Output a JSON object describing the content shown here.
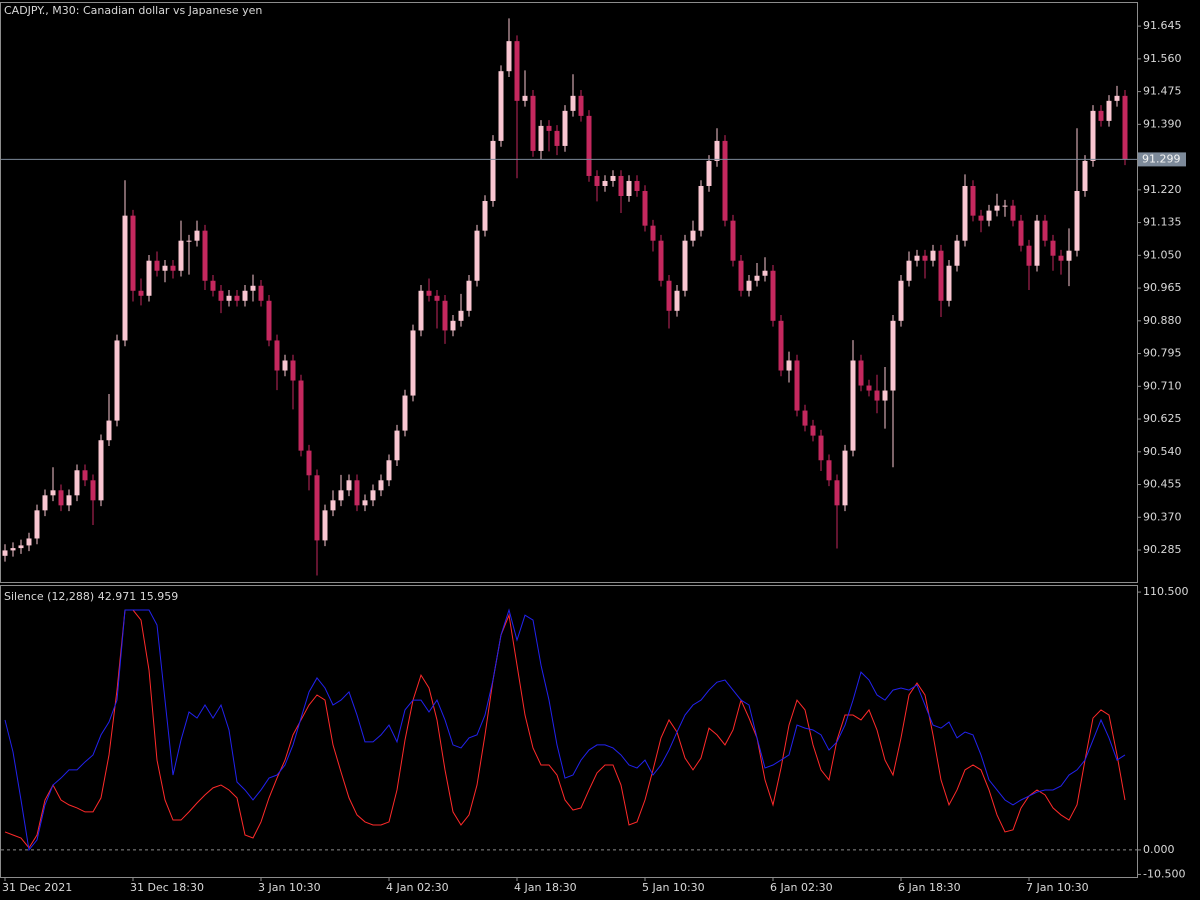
{
  "chart_data": [
    {
      "type": "candlestick",
      "title": "CADJPY., M30:  Canadian dollar vs Japanese yen",
      "bull_color": "#f9c6d1",
      "bear_color": "#c4285e",
      "categories": [
        "31 Dec 2021",
        null,
        null,
        null,
        null,
        null,
        null,
        null,
        null,
        null,
        null,
        null,
        null,
        null,
        null,
        null,
        "31 Dec 18:30",
        null,
        null,
        null,
        null,
        null,
        null,
        null,
        null,
        null,
        null,
        null,
        null,
        null,
        null,
        null,
        "3 Jan 10:30",
        null,
        null,
        null,
        null,
        null,
        null,
        null,
        null,
        null,
        null,
        null,
        null,
        null,
        null,
        null,
        "4 Jan 02:30",
        null,
        null,
        null,
        null,
        null,
        null,
        null,
        null,
        null,
        null,
        null,
        null,
        null,
        null,
        null,
        "4 Jan 18:30",
        null,
        null,
        null,
        null,
        null,
        null,
        null,
        null,
        null,
        null,
        null,
        null,
        null,
        null,
        null,
        "5 Jan 10:30",
        null,
        null,
        null,
        null,
        null,
        null,
        null,
        null,
        null,
        null,
        null,
        null,
        null,
        null,
        null,
        "6 Jan 02:30",
        null,
        null,
        null,
        null,
        null,
        null,
        null,
        null,
        null,
        null,
        null,
        null,
        null,
        null,
        null,
        "6 Jan 18:30",
        null,
        null,
        null,
        null,
        null,
        null,
        null,
        null,
        null,
        null,
        null,
        null,
        null,
        null,
        null,
        "7 Jan 10:30",
        null,
        null,
        null,
        null,
        null,
        null,
        null,
        null,
        null,
        null,
        null,
        null
      ],
      "open": [
        90.27,
        90.284,
        90.29,
        90.297,
        90.315,
        90.388,
        90.427,
        90.44,
        90.401,
        90.427,
        90.492,
        90.466,
        90.414,
        90.57,
        90.621,
        90.829,
        91.153,
        90.958,
        90.945,
        91.036,
        91.01,
        91.023,
        91.01,
        91.088,
        91.088,
        91.114,
        90.984,
        90.958,
        90.932,
        90.945,
        90.932,
        90.958,
        90.971,
        90.932,
        90.829,
        90.751,
        90.777,
        90.725,
        90.543,
        90.479,
        90.31,
        90.388,
        90.414,
        90.44,
        90.466,
        90.401,
        90.414,
        90.44,
        90.466,
        90.518,
        90.595,
        90.686,
        90.855,
        90.958,
        90.945,
        90.932,
        90.855,
        90.88,
        90.906,
        90.984,
        91.114,
        91.191,
        91.347,
        91.528,
        91.606,
        91.451,
        91.464,
        91.321,
        91.386,
        91.373,
        91.334,
        91.425,
        91.464,
        91.412,
        91.256,
        91.23,
        91.243,
        91.256,
        91.204,
        91.243,
        91.217,
        91.127,
        91.088,
        90.984,
        90.906,
        90.958,
        91.088,
        91.114,
        91.23,
        91.295,
        91.347,
        91.14,
        91.036,
        90.958,
        90.984,
        90.997,
        91.01,
        90.88,
        90.751,
        90.777,
        90.647,
        90.608,
        90.582,
        90.518,
        90.466,
        90.401,
        90.543,
        90.777,
        90.712,
        90.699,
        90.673,
        90.699,
        90.88,
        90.984,
        91.036,
        91.049,
        91.036,
        91.062,
        90.932,
        91.023,
        91.088,
        91.23,
        91.153,
        91.14,
        91.166,
        91.179,
        91.179,
        91.14,
        91.075,
        91.023,
        91.14,
        91.088,
        91.049,
        91.036,
        91.062,
        91.217,
        91.295,
        91.425,
        91.399,
        91.451,
        91.464
      ],
      "high": [
        90.3,
        90.305,
        90.312,
        90.33,
        90.403,
        90.442,
        90.5,
        90.455,
        90.442,
        90.507,
        90.507,
        90.481,
        90.585,
        90.69,
        90.844,
        91.245,
        91.168,
        90.99,
        91.051,
        91.06,
        91.038,
        91.038,
        91.14,
        91.103,
        91.14,
        91.129,
        90.999,
        90.973,
        90.96,
        90.96,
        90.973,
        91.0,
        90.986,
        90.947,
        90.844,
        90.792,
        90.792,
        90.74,
        90.558,
        90.494,
        90.403,
        90.44,
        90.48,
        90.481,
        90.481,
        90.429,
        90.455,
        90.481,
        90.533,
        90.61,
        90.701,
        90.87,
        90.973,
        90.99,
        90.96,
        90.947,
        90.895,
        90.95,
        90.999,
        91.129,
        91.206,
        91.362,
        91.543,
        91.665,
        91.621,
        91.53,
        91.479,
        91.401,
        91.401,
        91.388,
        91.44,
        91.52,
        91.479,
        91.427,
        91.271,
        91.258,
        91.271,
        91.271,
        91.258,
        91.258,
        91.232,
        91.142,
        91.103,
        90.999,
        90.973,
        91.103,
        91.14,
        91.245,
        91.31,
        91.38,
        91.362,
        91.155,
        91.051,
        90.999,
        91.03,
        91.045,
        91.025,
        90.895,
        90.8,
        90.792,
        90.662,
        90.623,
        90.597,
        90.533,
        90.481,
        90.558,
        90.83,
        90.792,
        90.727,
        90.74,
        90.76,
        90.895,
        90.999,
        91.06,
        91.064,
        91.064,
        91.077,
        91.077,
        91.038,
        91.103,
        91.26,
        91.245,
        91.168,
        91.181,
        91.21,
        91.194,
        91.194,
        91.155,
        91.09,
        91.155,
        91.155,
        91.103,
        91.064,
        91.12,
        91.38,
        91.31,
        91.44,
        91.44,
        91.466,
        91.49,
        91.479
      ],
      "low": [
        90.255,
        90.268,
        90.275,
        90.282,
        90.3,
        90.373,
        90.412,
        90.386,
        90.386,
        90.412,
        90.451,
        90.35,
        90.399,
        90.555,
        90.606,
        90.814,
        90.93,
        90.92,
        90.93,
        90.995,
        90.98,
        90.99,
        90.995,
        91.0,
        91.073,
        90.96,
        90.943,
        90.9,
        90.917,
        90.917,
        90.917,
        90.93,
        90.917,
        90.814,
        90.7,
        90.736,
        90.65,
        90.528,
        90.44,
        90.219,
        90.295,
        90.373,
        90.399,
        90.425,
        90.386,
        90.386,
        90.399,
        90.425,
        90.451,
        90.503,
        90.58,
        90.671,
        90.84,
        90.93,
        90.86,
        90.82,
        90.84,
        90.865,
        90.891,
        90.969,
        91.099,
        91.176,
        91.332,
        91.513,
        91.25,
        91.436,
        91.306,
        91.3,
        91.32,
        91.31,
        91.319,
        91.41,
        91.397,
        91.241,
        91.19,
        91.215,
        91.228,
        91.16,
        91.189,
        91.202,
        91.112,
        91.06,
        90.969,
        90.86,
        90.891,
        90.943,
        91.073,
        91.099,
        91.215,
        91.28,
        91.125,
        91.021,
        90.943,
        90.943,
        90.969,
        90.982,
        90.865,
        90.736,
        90.72,
        90.632,
        90.593,
        90.567,
        90.49,
        90.451,
        90.289,
        90.386,
        90.528,
        90.697,
        90.684,
        90.64,
        90.6,
        90.5,
        90.865,
        90.969,
        91.021,
        90.99,
        91.021,
        90.89,
        90.917,
        91.008,
        91.073,
        91.138,
        91.11,
        91.125,
        91.151,
        91.15,
        91.125,
        91.06,
        90.96,
        91.008,
        91.073,
        91.01,
        91.0,
        90.97,
        91.047,
        91.202,
        91.28,
        91.384,
        91.384,
        91.436,
        91.284
      ],
      "close": [
        90.284,
        90.29,
        90.297,
        90.315,
        90.388,
        90.427,
        90.44,
        90.401,
        90.427,
        90.492,
        90.466,
        90.414,
        90.57,
        90.621,
        90.829,
        91.153,
        90.958,
        90.945,
        91.036,
        91.01,
        91.023,
        91.01,
        91.088,
        91.088,
        91.114,
        90.984,
        90.958,
        90.932,
        90.945,
        90.932,
        90.958,
        90.971,
        90.932,
        90.829,
        90.751,
        90.777,
        90.725,
        90.543,
        90.479,
        90.31,
        90.388,
        90.414,
        90.44,
        90.466,
        90.401,
        90.414,
        90.44,
        90.466,
        90.518,
        90.595,
        90.686,
        90.855,
        90.958,
        90.945,
        90.932,
        90.855,
        90.88,
        90.906,
        90.984,
        91.114,
        91.191,
        91.347,
        91.528,
        91.606,
        91.451,
        91.464,
        91.321,
        91.386,
        91.373,
        91.334,
        91.425,
        91.464,
        91.412,
        91.256,
        91.23,
        91.243,
        91.256,
        91.204,
        91.243,
        91.217,
        91.127,
        91.088,
        90.984,
        90.906,
        90.958,
        91.088,
        91.114,
        91.23,
        91.295,
        91.347,
        91.14,
        91.036,
        90.958,
        90.984,
        90.997,
        91.01,
        90.88,
        90.751,
        90.777,
        90.647,
        90.608,
        90.582,
        90.518,
        90.466,
        90.401,
        90.543,
        90.777,
        90.712,
        90.699,
        90.673,
        90.699,
        90.88,
        90.984,
        91.036,
        91.049,
        91.036,
        91.062,
        90.932,
        91.023,
        91.088,
        91.23,
        91.153,
        91.14,
        91.166,
        91.179,
        91.179,
        91.14,
        91.075,
        91.023,
        91.14,
        91.088,
        91.049,
        91.036,
        91.062,
        91.217,
        91.295,
        91.425,
        91.399,
        91.451,
        91.464,
        91.299
      ],
      "current_price": 91.299,
      "current_price_color": "#7d8a9a",
      "ylim": [
        90.202,
        91.705
      ],
      "yticks": [
        91.645,
        {
          "value": 91.56,
          "label": "91.560"
        },
        91.475,
        {
          "value": 91.39,
          "label": "91.390"
        },
        {
          "value": 91.22,
          "label": "91.220"
        },
        91.135,
        {
          "value": 91.05,
          "label": "91.050"
        },
        90.965,
        {
          "value": 90.88,
          "label": "90.880"
        },
        90.795,
        {
          "value": 90.71,
          "label": "90.710"
        },
        90.625,
        {
          "value": 90.54,
          "label": "90.540"
        },
        90.455,
        {
          "value": 90.37,
          "label": "90.370"
        },
        90.285
      ]
    },
    {
      "type": "line",
      "title": "Silence (12,288) 42.971 15.959",
      "ylim": [
        -11.6,
        113.1
      ],
      "yticks": [
        {
          "value": 110.5,
          "label": "110.500"
        },
        {
          "value": 0,
          "label": "0.000"
        },
        {
          "value": -10.5,
          "label": "-10.500"
        }
      ],
      "levels": [
        0
      ],
      "series": [
        {
          "color": "#ff2a2a",
          "values": [
            7.7,
            6.4,
            5.1,
            0.9,
            6.4,
            21.4,
            27.8,
            21.4,
            19.3,
            18.0,
            16.3,
            16.3,
            22.3,
            40.7,
            68.5,
            102.8,
            102.8,
            98.5,
            77.1,
            38.5,
            21.4,
            12.8,
            12.8,
            16.3,
            20.1,
            23.6,
            26.6,
            27.8,
            25.7,
            22.3,
            6.4,
            5.1,
            12.0,
            22.3,
            30.8,
            38.5,
            49.3,
            55.7,
            62.1,
            66.4,
            64.2,
            45.0,
            33.4,
            22.3,
            15.0,
            12.0,
            10.7,
            10.7,
            12.0,
            25.7,
            47.1,
            64.2,
            74.9,
            69.4,
            55.7,
            34.3,
            16.3,
            10.7,
            15.0,
            27.8,
            49.3,
            72.8,
            92.1,
            100.6,
            79.2,
            57.8,
            43.7,
            36.4,
            36.4,
            32.1,
            21.4,
            17.1,
            18.0,
            25.7,
            33.0,
            36.4,
            36.4,
            27.8,
            10.7,
            12.0,
            21.4,
            34.3,
            48.0,
            55.7,
            50.5,
            39.4,
            34.3,
            39.4,
            52.2,
            49.3,
            45.0,
            51.4,
            64.2,
            56.5,
            48.0,
            30.0,
            19.3,
            35.1,
            53.5,
            64.2,
            60.0,
            45.0,
            34.3,
            30.0,
            47.1,
            57.8,
            57.8,
            55.7,
            60.0,
            51.4,
            38.5,
            32.1,
            48.0,
            66.4,
            71.5,
            66.4,
            49.3,
            30.0,
            19.3,
            25.7,
            34.3,
            36.4,
            34.3,
            25.7,
            15.0,
            7.7,
            8.6,
            18.0,
            23.1,
            25.7,
            23.6,
            18.0,
            15.0,
            12.8,
            19.3,
            38.5,
            56.5,
            60.0,
            57.8,
            40.7,
            21.4
          ]
        },
        {
          "color": "#2222ee",
          "values": [
            55.7,
            42.0,
            21.4,
            0,
            4.3,
            19.3,
            27.8,
            30.8,
            34.3,
            34.3,
            37.7,
            40.7,
            49.3,
            54.8,
            64.2,
            102.8,
            102.8,
            102.8,
            102.8,
            96.4,
            64.2,
            32.1,
            47.1,
            59.1,
            56.5,
            62.1,
            56.5,
            62.1,
            51.4,
            29.1,
            25.7,
            21.4,
            25.7,
            30.8,
            32.1,
            36.4,
            45.0,
            56.5,
            67.7,
            73.7,
            69.4,
            62.1,
            64.2,
            67.7,
            57.8,
            46.3,
            46.3,
            49.3,
            53.5,
            46.3,
            60.0,
            64.2,
            64.2,
            59.1,
            64.2,
            55.7,
            45.0,
            43.7,
            48.0,
            49.3,
            57.8,
            72.8,
            92.1,
            102.8,
            89.9,
            100.6,
            98.5,
            79.2,
            64.2,
            45.0,
            30.8,
            32.1,
            38.5,
            42.8,
            45.0,
            45.0,
            43.7,
            40.7,
            36.4,
            35.1,
            38.5,
            32.1,
            36.4,
            42.8,
            50.5,
            57.8,
            62.1,
            64.2,
            68.5,
            71.9,
            72.8,
            68.5,
            64.2,
            62.1,
            48.0,
            35.1,
            36.4,
            38.5,
            40.7,
            53.5,
            52.2,
            51.4,
            49.3,
            42.8,
            46.3,
            53.5,
            64.2,
            76.2,
            72.8,
            66.4,
            64.2,
            68.5,
            69.4,
            68.5,
            70.7,
            62.1,
            53.5,
            52.2,
            54.8,
            48.0,
            50.5,
            49.3,
            40.7,
            30.0,
            25.7,
            21.4,
            19.3,
            21.4,
            23.1,
            24.8,
            25.7,
            25.7,
            27.4,
            32.1,
            34.3,
            38.5,
            47.1,
            55.7,
            48.0,
            38.5,
            40.7
          ]
        }
      ]
    }
  ]
}
